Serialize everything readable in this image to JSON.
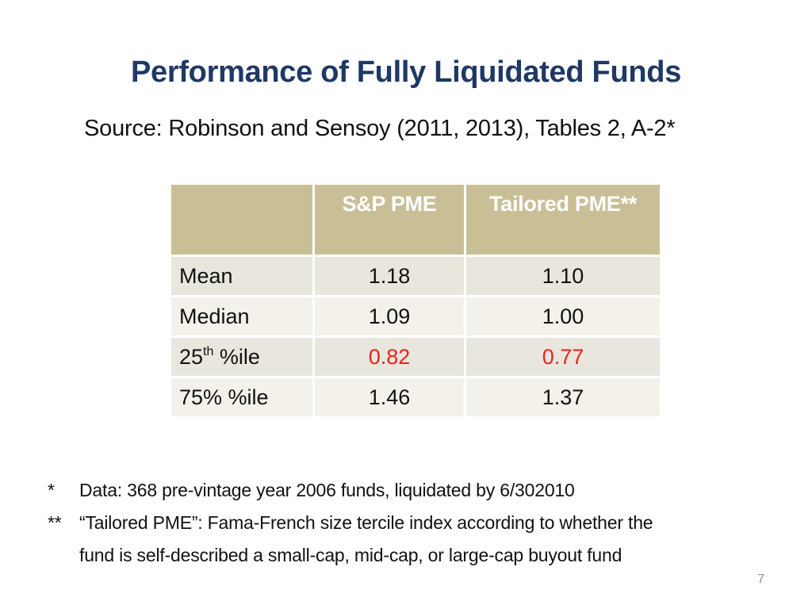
{
  "slide": {
    "title": "Performance of Fully Liquidated Funds",
    "subtitle": "Source: Robinson and Sensoy (2011, 2013), Tables 2, A-2*",
    "page_number": "7"
  },
  "table": {
    "headers": [
      "",
      "S&P PME",
      "Tailored PME**"
    ],
    "rows": [
      {
        "label": "Mean",
        "sp_pme": "1.18",
        "tailored_pme": "1.10"
      },
      {
        "label": "Median",
        "sp_pme": "1.09",
        "tailored_pme": "1.00"
      },
      {
        "label_prefix": "25",
        "label_sup": "th",
        "label_suffix": " %ile",
        "sp_pme": "0.82",
        "tailored_pme": "0.77"
      },
      {
        "label": "75% %ile",
        "sp_pme": "1.46",
        "tailored_pme": "1.37"
      }
    ],
    "header_color": "#c9bf97",
    "highlight_color": "#e8231d"
  },
  "footnotes": [
    {
      "marker": "*",
      "text": "Data: 368 pre-vintage year 2006 funds, liquidated by 6/302010"
    },
    {
      "marker": "**",
      "text": "“Tailored PME”: Fama-French size tercile index according to whether the",
      "continuation": "fund is self-described a small-cap, mid-cap, or large-cap buyout fund"
    }
  ]
}
